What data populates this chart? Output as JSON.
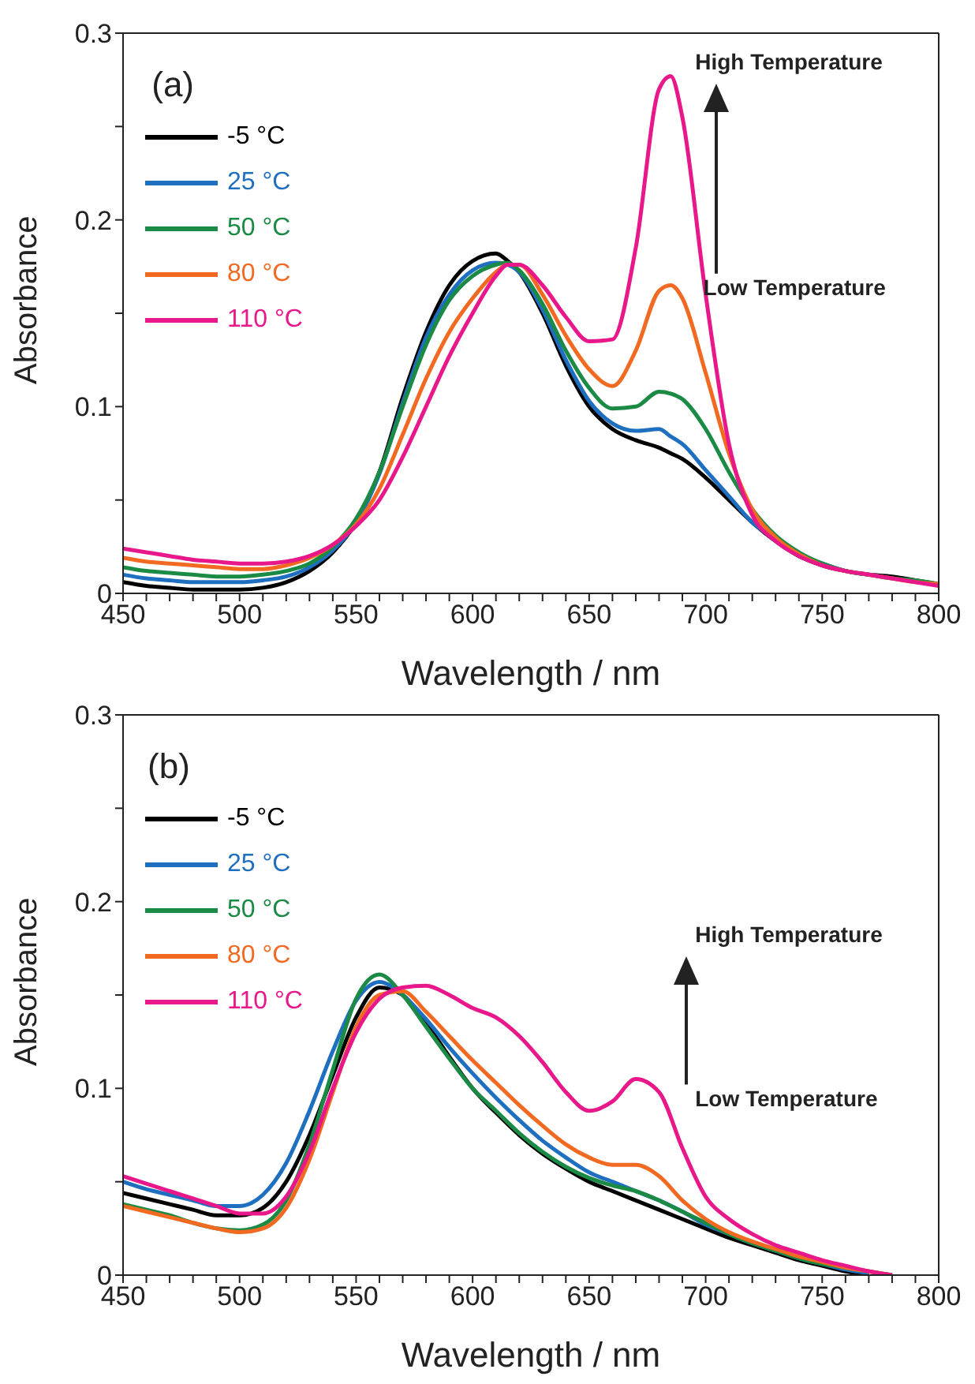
{
  "chart_data": [
    {
      "type": "line",
      "xlabel": "Wavelength / nm",
      "ylabel": "Absorbance",
      "annotations": [
        "(a)",
        "High Temperature",
        "Low Temperature"
      ],
      "legend": "top left",
      "grid": false,
      "marker": "none",
      "line_style": "solid",
      "xlim": [
        450,
        800
      ],
      "ylim": [
        0,
        0.3
      ],
      "xticks": [
        450,
        {
          "value": 460,
          "label": null
        },
        {
          "value": 470,
          "label": null
        },
        {
          "value": 480,
          "label": null
        },
        {
          "value": 490,
          "label": null
        },
        500,
        {
          "value": 510,
          "label": null
        },
        {
          "value": 520,
          "label": null
        },
        {
          "value": 530,
          "label": null
        },
        {
          "value": 540,
          "label": null
        },
        550,
        {
          "value": 560,
          "label": null
        },
        {
          "value": 570,
          "label": null
        },
        {
          "value": 580,
          "label": null
        },
        {
          "value": 590,
          "label": null
        },
        600,
        {
          "value": 610,
          "label": null
        },
        {
          "value": 620,
          "label": null
        },
        {
          "value": 630,
          "label": null
        },
        {
          "value": 640,
          "label": null
        },
        650,
        {
          "value": 660,
          "label": null
        },
        {
          "value": 670,
          "label": null
        },
        {
          "value": 680,
          "label": null
        },
        {
          "value": 690,
          "label": null
        },
        700,
        {
          "value": 710,
          "label": null
        },
        {
          "value": 720,
          "label": null
        },
        {
          "value": 730,
          "label": null
        },
        {
          "value": 740,
          "label": null
        },
        750,
        {
          "value": 760,
          "label": null
        },
        {
          "value": 770,
          "label": null
        },
        {
          "value": 780,
          "label": null
        },
        {
          "value": 790,
          "label": null
        },
        800
      ],
      "yticks": [
        0,
        {
          "value": 0.05,
          "label": null
        },
        0.1,
        {
          "value": 0.15,
          "label": null
        },
        0.2,
        {
          "value": 0.25,
          "label": null
        },
        0.3
      ],
      "x": [
        450,
        460,
        470,
        480,
        490,
        500,
        510,
        520,
        530,
        540,
        550,
        560,
        570,
        580,
        590,
        600,
        610,
        615,
        620,
        630,
        640,
        650,
        660,
        670,
        680,
        685,
        690,
        700,
        710,
        720,
        730,
        740,
        750,
        760,
        770,
        780,
        790,
        800
      ],
      "series": [
        {
          "name": "-5 °C",
          "color": "#000000",
          "values": [
            0.006,
            0.004,
            0.003,
            0.002,
            0.002,
            0.002,
            0.003,
            0.006,
            0.012,
            0.022,
            0.038,
            0.065,
            0.105,
            0.14,
            0.165,
            0.178,
            0.182,
            0.178,
            0.172,
            0.15,
            0.122,
            0.1,
            0.088,
            0.082,
            0.078,
            0.075,
            0.072,
            0.062,
            0.05,
            0.038,
            0.028,
            0.02,
            0.015,
            0.012,
            0.01,
            0.009,
            0.007,
            0.005
          ]
        },
        {
          "name": "25 °C",
          "color": "#1f6fc0",
          "values": [
            0.01,
            0.008,
            0.007,
            0.006,
            0.006,
            0.006,
            0.007,
            0.009,
            0.014,
            0.023,
            0.038,
            0.064,
            0.102,
            0.137,
            0.16,
            0.173,
            0.177,
            0.176,
            0.172,
            0.152,
            0.125,
            0.103,
            0.091,
            0.087,
            0.088,
            0.084,
            0.08,
            0.066,
            0.052,
            0.038,
            0.029,
            0.021,
            0.016,
            0.012,
            0.01,
            null,
            null,
            null
          ]
        },
        {
          "name": "50 °C",
          "color": "#1a8a45",
          "values": [
            0.014,
            0.012,
            0.011,
            0.01,
            0.009,
            0.009,
            0.01,
            0.012,
            0.016,
            0.025,
            0.04,
            0.065,
            0.1,
            0.133,
            0.157,
            0.17,
            0.176,
            0.177,
            0.173,
            0.155,
            0.13,
            0.11,
            0.099,
            0.1,
            0.108,
            0.107,
            0.104,
            0.088,
            0.065,
            0.045,
            0.031,
            0.022,
            0.016,
            0.012,
            0.01,
            0.008,
            0.007,
            0.005
          ]
        },
        {
          "name": "80 °C",
          "color": "#f26a22",
          "values": [
            0.019,
            0.017,
            0.016,
            0.015,
            0.014,
            0.013,
            0.013,
            0.015,
            0.019,
            0.026,
            0.037,
            0.056,
            0.085,
            0.115,
            0.14,
            0.158,
            0.172,
            0.176,
            0.176,
            0.16,
            0.138,
            0.12,
            0.111,
            0.13,
            0.162,
            0.165,
            0.158,
            0.118,
            0.075,
            0.045,
            0.03,
            0.021,
            0.015,
            0.012,
            0.01,
            0.008,
            0.006,
            0.005
          ]
        },
        {
          "name": "110 °C",
          "color": "#e8178a",
          "values": [
            0.024,
            0.022,
            0.02,
            0.018,
            0.017,
            0.016,
            0.016,
            0.017,
            0.02,
            0.026,
            0.036,
            0.05,
            0.073,
            0.1,
            0.127,
            0.15,
            0.17,
            0.176,
            0.176,
            0.165,
            0.148,
            0.135,
            0.136,
            0.185,
            0.27,
            0.277,
            0.255,
            0.16,
            0.08,
            0.042,
            0.028,
            0.02,
            0.015,
            0.012,
            0.01,
            0.008,
            0.006,
            0.004
          ]
        }
      ]
    },
    {
      "type": "line",
      "xlabel": "Wavelength / nm",
      "ylabel": "Absorbance",
      "annotations": [
        "(b)",
        "High Temperature",
        "Low Temperature"
      ],
      "legend": "top left",
      "grid": false,
      "marker": "none",
      "line_style": "solid",
      "xlim": [
        450,
        800
      ],
      "ylim": [
        0,
        0.3
      ],
      "xticks": [
        450,
        {
          "value": 460,
          "label": null
        },
        {
          "value": 470,
          "label": null
        },
        {
          "value": 480,
          "label": null
        },
        {
          "value": 490,
          "label": null
        },
        500,
        {
          "value": 510,
          "label": null
        },
        {
          "value": 520,
          "label": null
        },
        {
          "value": 530,
          "label": null
        },
        {
          "value": 540,
          "label": null
        },
        550,
        {
          "value": 560,
          "label": null
        },
        {
          "value": 570,
          "label": null
        },
        {
          "value": 580,
          "label": null
        },
        {
          "value": 590,
          "label": null
        },
        600,
        {
          "value": 610,
          "label": null
        },
        {
          "value": 620,
          "label": null
        },
        {
          "value": 630,
          "label": null
        },
        {
          "value": 640,
          "label": null
        },
        650,
        {
          "value": 660,
          "label": null
        },
        {
          "value": 670,
          "label": null
        },
        {
          "value": 680,
          "label": null
        },
        {
          "value": 690,
          "label": null
        },
        700,
        {
          "value": 710,
          "label": null
        },
        {
          "value": 720,
          "label": null
        },
        {
          "value": 730,
          "label": null
        },
        {
          "value": 740,
          "label": null
        },
        750,
        {
          "value": 760,
          "label": null
        },
        {
          "value": 770,
          "label": null
        },
        {
          "value": 780,
          "label": null
        },
        {
          "value": 790,
          "label": null
        },
        800
      ],
      "yticks": [
        0,
        {
          "value": 0.05,
          "label": null
        },
        0.1,
        {
          "value": 0.15,
          "label": null
        },
        0.2,
        {
          "value": 0.25,
          "label": null
        },
        0.3
      ],
      "x": [
        450,
        460,
        470,
        480,
        490,
        500,
        510,
        520,
        530,
        540,
        550,
        560,
        570,
        580,
        590,
        600,
        610,
        620,
        630,
        640,
        650,
        660,
        670,
        680,
        690,
        700,
        710,
        720,
        730,
        740,
        750,
        760,
        770,
        780
      ],
      "series": [
        {
          "name": "-5 °C",
          "color": "#000000",
          "values": [
            0.044,
            0.041,
            0.038,
            0.035,
            0.032,
            0.032,
            0.036,
            0.05,
            0.075,
            0.107,
            0.138,
            0.154,
            0.15,
            0.135,
            0.117,
            0.1,
            0.087,
            0.075,
            0.065,
            0.057,
            0.05,
            0.045,
            0.04,
            0.035,
            0.03,
            0.025,
            0.02,
            0.016,
            0.012,
            0.008,
            0.005,
            0.002,
            0.0,
            null
          ]
        },
        {
          "name": "25 °C",
          "color": "#1f6fc0",
          "values": [
            0.05,
            0.046,
            0.043,
            0.04,
            0.037,
            0.037,
            0.043,
            0.06,
            0.088,
            0.12,
            0.147,
            0.157,
            0.15,
            0.137,
            0.122,
            0.108,
            0.095,
            0.083,
            0.072,
            0.063,
            0.055,
            0.05,
            0.045,
            0.04,
            0.034,
            0.027,
            0.022,
            0.017,
            0.013,
            0.009,
            0.006,
            0.003,
            0.001,
            null
          ]
        },
        {
          "name": "50 °C",
          "color": "#1a8a45",
          "values": [
            0.038,
            0.035,
            0.032,
            0.028,
            0.025,
            0.024,
            0.027,
            0.04,
            0.07,
            0.11,
            0.148,
            0.161,
            0.15,
            0.133,
            0.116,
            0.1,
            0.088,
            0.076,
            0.066,
            0.058,
            0.052,
            0.048,
            0.045,
            0.04,
            0.034,
            0.028,
            0.022,
            0.017,
            0.013,
            0.009,
            0.006,
            0.004,
            0.002,
            0.0
          ]
        },
        {
          "name": "80 °C",
          "color": "#f26a22",
          "values": [
            0.037,
            0.034,
            0.031,
            0.028,
            0.025,
            0.023,
            0.025,
            0.036,
            0.062,
            0.098,
            0.133,
            0.15,
            0.152,
            0.141,
            0.128,
            0.115,
            0.103,
            0.091,
            0.08,
            0.07,
            0.063,
            0.059,
            0.059,
            0.053,
            0.04,
            0.03,
            0.023,
            0.018,
            0.014,
            0.01,
            0.007,
            0.004,
            0.002,
            0.0
          ]
        },
        {
          "name": "110 °C",
          "color": "#e8178a",
          "values": [
            0.053,
            0.049,
            0.045,
            0.041,
            0.037,
            0.033,
            0.033,
            0.042,
            0.066,
            0.1,
            0.13,
            0.148,
            0.154,
            0.155,
            0.15,
            0.143,
            0.138,
            0.128,
            0.114,
            0.098,
            0.088,
            0.093,
            0.105,
            0.098,
            0.068,
            0.042,
            0.03,
            0.022,
            0.016,
            0.012,
            0.008,
            0.005,
            0.002,
            0.0
          ]
        }
      ]
    }
  ]
}
